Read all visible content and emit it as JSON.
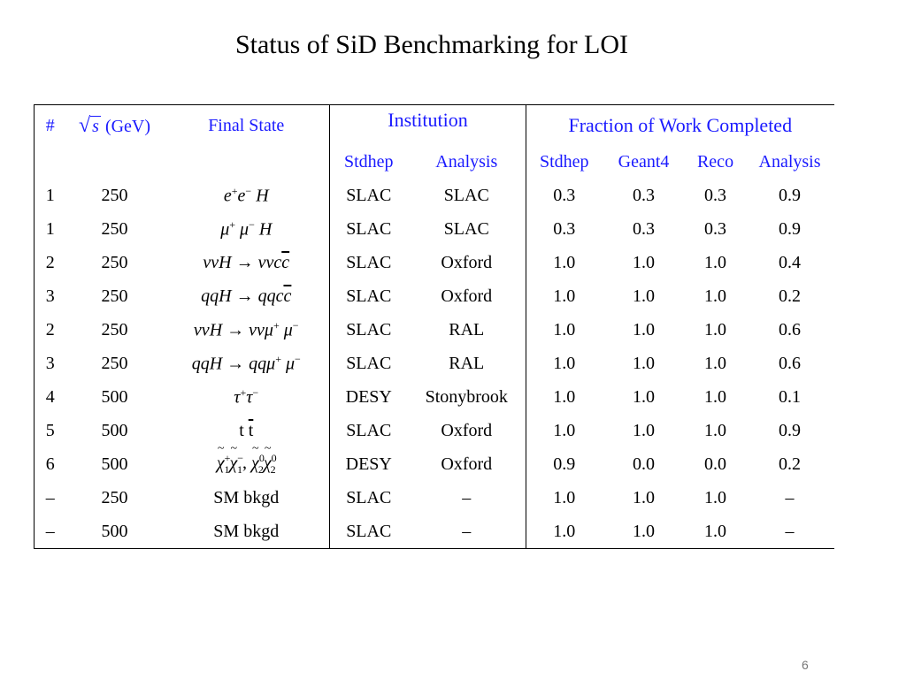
{
  "title": "Status of SiD Benchmarking for LOI",
  "header": {
    "num": "#",
    "sqrt_symbol": "√",
    "s_symbol": "s",
    "energy_unit": "(GeV)",
    "final_state": "Final State",
    "institution": "Institution",
    "fraction": "Fraction of  Work Completed",
    "sub": [
      "Stdhep",
      "Analysis",
      "Stdhep",
      "Geant4",
      "Reco",
      "Analysis"
    ]
  },
  "rows": [
    {
      "num": "1",
      "energy": "250",
      "inst_stdhep": "SLAC",
      "inst_analysis": "SLAC",
      "stdhep": "0.3",
      "geant4": "0.3",
      "reco": "0.3",
      "analysis": "0.9"
    },
    {
      "num": "1",
      "energy": "250",
      "inst_stdhep": "SLAC",
      "inst_analysis": "SLAC",
      "stdhep": "0.3",
      "geant4": "0.3",
      "reco": "0.3",
      "analysis": "0.9"
    },
    {
      "num": "2",
      "energy": "250",
      "inst_stdhep": "SLAC",
      "inst_analysis": "Oxford",
      "stdhep": "1.0",
      "geant4": "1.0",
      "reco": "1.0",
      "analysis": "0.4"
    },
    {
      "num": "3",
      "energy": "250",
      "inst_stdhep": "SLAC",
      "inst_analysis": "Oxford",
      "stdhep": "1.0",
      "geant4": "1.0",
      "reco": "1.0",
      "analysis": "0.2"
    },
    {
      "num": "2",
      "energy": "250",
      "inst_stdhep": "SLAC",
      "inst_analysis": "RAL",
      "stdhep": "1.0",
      "geant4": "1.0",
      "reco": "1.0",
      "analysis": "0.6"
    },
    {
      "num": "3",
      "energy": "250",
      "inst_stdhep": "SLAC",
      "inst_analysis": "RAL",
      "stdhep": "1.0",
      "geant4": "1.0",
      "reco": "1.0",
      "analysis": "0.6"
    },
    {
      "num": "4",
      "energy": "500",
      "inst_stdhep": "DESY",
      "inst_analysis": "Stonybrook",
      "stdhep": "1.0",
      "geant4": "1.0",
      "reco": "1.0",
      "analysis": "0.1"
    },
    {
      "num": "5",
      "energy": "500",
      "inst_stdhep": "SLAC",
      "inst_analysis": "Oxford",
      "stdhep": "1.0",
      "geant4": "1.0",
      "reco": "1.0",
      "analysis": "0.9"
    },
    {
      "num": "6",
      "energy": "500",
      "inst_stdhep": "DESY",
      "inst_analysis": "Oxford",
      "stdhep": "0.9",
      "geant4": "0.0",
      "reco": "0.0",
      "analysis": "0.2"
    },
    {
      "num": "–",
      "energy": "250",
      "final_state": "SM bkgd",
      "inst_stdhep": "SLAC",
      "inst_analysis": "–",
      "stdhep": "1.0",
      "geant4": "1.0",
      "reco": "1.0",
      "analysis": "–"
    },
    {
      "num": "–",
      "energy": "500",
      "final_state": "SM bkgd",
      "inst_stdhep": "SLAC",
      "inst_analysis": "–",
      "stdhep": "1.0",
      "geant4": "1.0",
      "reco": "1.0",
      "analysis": "–"
    }
  ],
  "fs": {
    "e": "e",
    "H": "H",
    "mu": "μ",
    "nu": "ν",
    "q": "q",
    "c": "c",
    "tau": "τ",
    "t": "t",
    "chi": "χ",
    "arrow": "→",
    "plus": "+",
    "minus": "−",
    "one": "1",
    "two": "2",
    "zero": "0",
    "comma": ","
  },
  "page_number": "6"
}
